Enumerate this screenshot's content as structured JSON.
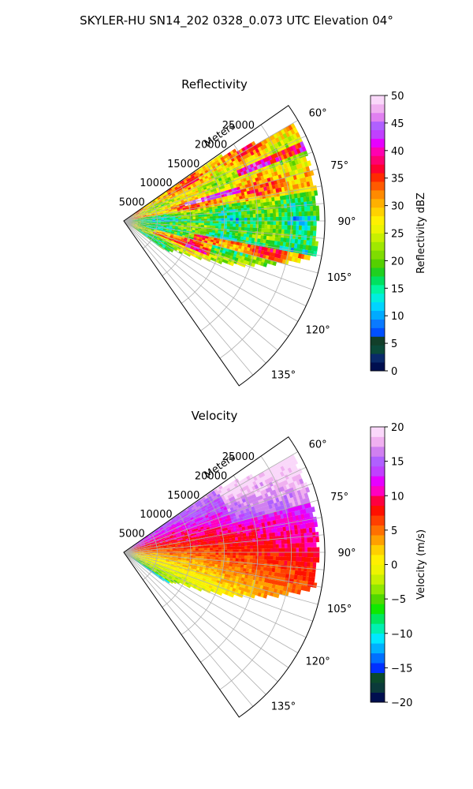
{
  "figure": {
    "suptitle": "SKYLER-HU  SN14_202  0328_0.073 UTC Elevation 04°"
  },
  "chart_data": [
    {
      "type": "heatmap",
      "subtype": "polar-sector",
      "title": "Reflectivity",
      "radial_axis_label": "Meters",
      "radial_ticks": [
        "5000",
        "10000",
        "15000",
        "20000",
        "25000"
      ],
      "radial_tick_values": [
        5000,
        10000,
        15000,
        20000,
        25000
      ],
      "radial_max": 30000,
      "angular_ticks": [
        "60°",
        "75°",
        "90°",
        "105°",
        "120°",
        "135°"
      ],
      "angular_tick_values": [
        60,
        75,
        90,
        105,
        120,
        135
      ],
      "angular_range": [
        55,
        145
      ],
      "grid": true,
      "colorbar": {
        "label": "Reflectivity dBZ",
        "min": 0,
        "max": 50,
        "ticks": [
          "0",
          "5",
          "10",
          "15",
          "20",
          "25",
          "30",
          "35",
          "40",
          "45",
          "50"
        ],
        "tick_values": [
          0,
          5,
          10,
          15,
          20,
          25,
          30,
          35,
          40,
          45,
          50
        ],
        "colors": [
          "#000f4f",
          "#0a2a6a",
          "#0b4a3a",
          "#123f2a",
          "#0050ff",
          "#0a7aff",
          "#00aaff",
          "#00d4ff",
          "#00eedd",
          "#00f5a0",
          "#00e060",
          "#20d020",
          "#55d000",
          "#7fdc00",
          "#a0e800",
          "#c8f000",
          "#ecf400",
          "#fff000",
          "#ffd200",
          "#ffb000",
          "#ff8a00",
          "#ff5a00",
          "#ff2a00",
          "#ff0030",
          "#ff0070",
          "#ff00b0",
          "#e600ff",
          "#c040ff",
          "#b060ff",
          "#e080f0",
          "#f0b0f0",
          "#fad8fa"
        ],
        "position": "right"
      },
      "field_description_ranges_dbz": [
        15,
        45
      ]
    },
    {
      "type": "heatmap",
      "subtype": "polar-sector",
      "title": "Velocity",
      "radial_axis_label": "Meters",
      "radial_ticks": [
        "5000",
        "10000",
        "15000",
        "20000",
        "25000"
      ],
      "radial_tick_values": [
        5000,
        10000,
        15000,
        20000,
        25000
      ],
      "radial_max": 30000,
      "angular_ticks": [
        "60°",
        "75°",
        "90°",
        "105°",
        "120°",
        "135°"
      ],
      "angular_tick_values": [
        60,
        75,
        90,
        105,
        120,
        135
      ],
      "angular_range": [
        55,
        145
      ],
      "grid": true,
      "colorbar": {
        "label": "Velocity (m/s)",
        "min": -20,
        "max": 20,
        "ticks": [
          "−20",
          "−15",
          "−10",
          "−5",
          "0",
          "5",
          "10",
          "15",
          "20"
        ],
        "tick_values": [
          -20,
          -15,
          -10,
          -5,
          0,
          5,
          10,
          15,
          20
        ],
        "colors": [
          "#000f4f",
          "#0b3a3a",
          "#0b4a2a",
          "#0030ff",
          "#0070ff",
          "#00b0ff",
          "#00e8ff",
          "#00f0b0",
          "#00e860",
          "#10e800",
          "#50d800",
          "#90e800",
          "#c8f000",
          "#eef400",
          "#fff000",
          "#ffd000",
          "#ffa000",
          "#ff7000",
          "#ff4000",
          "#ff1000",
          "#ff0040",
          "#ff00c0",
          "#e600ff",
          "#c040ff",
          "#b060ff",
          "#d080f0",
          "#f0b0f0",
          "#fad8fa"
        ],
        "position": "right"
      },
      "field_description_ranges_ms": [
        -12,
        16
      ]
    }
  ]
}
